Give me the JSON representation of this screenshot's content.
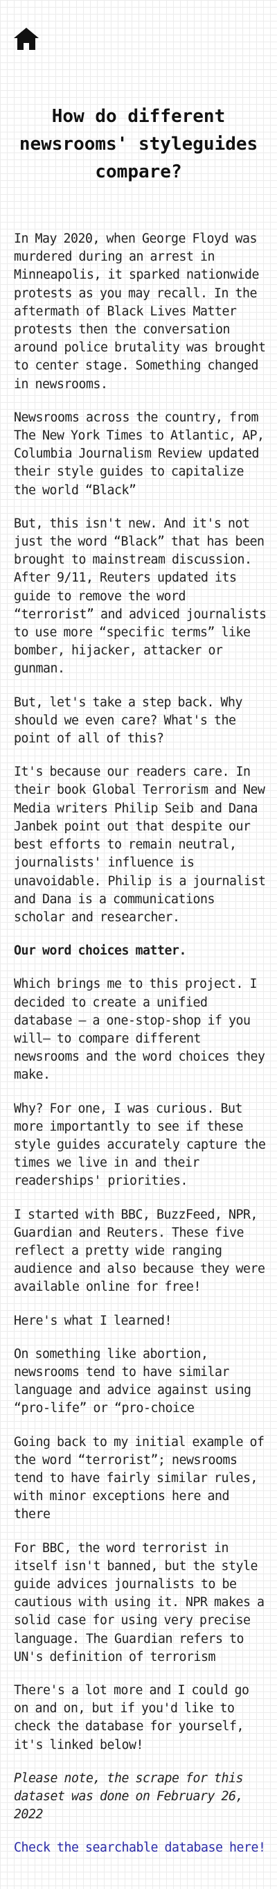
{
  "nav": {
    "home_icon": "home-icon"
  },
  "article": {
    "title": "How do different newsrooms' styleguides compare?",
    "paragraphs": [
      "In May 2020, when George Floyd was murdered during an arrest in Minneapolis, it sparked nationwide protests as you may recall. In the aftermath of Black Lives Matter protests then the conversation around police brutality was brought to center stage. Something changed in newsrooms.",
      "Newsrooms across the country, from The New York Times to Atlantic, AP, Columbia Journalism Review updated their style guides to capitalize the world “Black”",
      "But, this isn't new. And it's not just the word “Black” that has been brought to mainstream discussion. After 9/11, Reuters updated its guide to remove the word “terrorist” and adviced journalists to use more “specific terms” like bomber, hijacker, attacker or gunman.",
      "But, let's take a step back. Why should we even care? What's the point of all of this?",
      "It's because our readers care. In their book Global Terrorism and New Media writers Philip Seib and Dana Janbek point out that despite our best efforts to remain neutral, journalists' influence is unavoidable. Philip is a journalist and Dana is a communications scholar and researcher.",
      "Our word choices matter.",
      "Which brings me to this project. I decided to create a unified database — a one-stop-shop if you will— to compare different newsrooms and the word choices they make.",
      "Why? For one, I was curious. But more importantly to see if these style guides accurately capture the times we live in and their readerships' priorities.",
      "I started with BBC, BuzzFeed, NPR, Guardian and Reuters. These five reflect a pretty wide ranging audience and also because they were available online for free!",
      "Here's what I learned!",
      "On something like abortion, newsrooms tend to have similar language and advice against using “pro-life” or “pro-choice",
      "Going back to my initial example of the word “terrorist”; newsrooms tend to have fairly similar rules, with minor exceptions here and there",
      "For BBC, the word terrorist in itself isn't banned, but the style guide advices journalists to be cautious with using it. NPR makes a solid case for using very precise language. The Guardian refers to UN's definition of terrorism",
      "There's a lot more and I could go on and on, but if you'd like to check the database for yourself, it's linked below!",
      "Please note, the scrape for this dataset was done on February 26, 2022"
    ],
    "link_text": "Check the searchable database here!"
  },
  "colors": {
    "text": "#1f1f1f",
    "link": "#2a2aa8",
    "grid": "#ececec"
  }
}
